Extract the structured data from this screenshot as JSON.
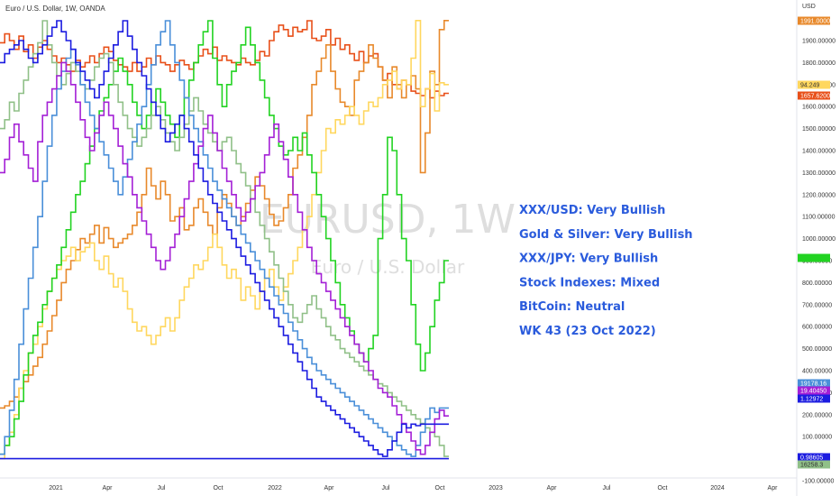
{
  "header": {
    "title": "Euro / U.S. Dollar, 1W, OANDA"
  },
  "watermark": {
    "symbol": "EURUSD, 1W",
    "name": "Euro / U.S. Dollar"
  },
  "chart_data": {
    "type": "line",
    "x_ticks": [
      "2021",
      "Apr",
      "Jul",
      "Oct",
      "2022",
      "Apr",
      "Jul",
      "Oct",
      "2023",
      "Apr",
      "Jul",
      "Oct",
      "2024",
      "Apr"
    ],
    "y_axis": {
      "unit_label": "USD",
      "ticks": [
        "1900.00000",
        "1800.00000",
        "1700.00000",
        "1600.00000",
        "1500.00000",
        "1400.00000",
        "1300.00000",
        "1200.00000",
        "1100.00000",
        "1000.00000",
        "900.00000",
        "800.00000",
        "700.00000",
        "600.00000",
        "500.00000",
        "400.00000",
        "300.00000",
        "200.00000",
        "100.00000",
        "0.00000",
        "-100.00000"
      ],
      "range": [
        -100,
        2000
      ]
    },
    "price_tags": [
      {
        "label": "1991.00000",
        "value": 1991,
        "color": "#e8892b",
        "text_color": "#ffffff"
      },
      {
        "label": "94.249",
        "value": 1708,
        "color": "#ffd75e",
        "text_color": "#333333"
      },
      {
        "label": "1657.62000",
        "value": 1657,
        "color": "#e8501a",
        "text_color": "#ffffff"
      },
      {
        "label": "",
        "value": 900,
        "color": "#22d322",
        "text_color": "#ffffff"
      },
      {
        "label": "19178.16",
        "value": 230,
        "color": "#4a8fd9",
        "text_color": "#ffffff"
      },
      {
        "label": "19.40450",
        "value": 194,
        "color": "#a420d6",
        "text_color": "#ffffff"
      },
      {
        "label": "1.12972",
        "value": 157,
        "color": "#1c1ce0",
        "text_color": "#ffffff"
      },
      {
        "label": "0.98605",
        "value": 10,
        "color": "#1c1ce0",
        "text_color": "#ffffff"
      },
      {
        "label": "16258.3",
        "value": -20,
        "color": "#90c088",
        "text_color": "#333333"
      }
    ],
    "series": [
      {
        "color": "#e8501a",
        "values": [
          1890,
          1930,
          1900,
          1860,
          1920,
          1850,
          1880,
          1820,
          1870,
          1900,
          1860,
          1830,
          1800,
          1820,
          1790,
          1760,
          1810,
          1780,
          1800,
          1830,
          1800,
          1840,
          1870,
          1850,
          1810,
          1790,
          1780,
          1760,
          1800,
          1760,
          1780,
          1820,
          1790,
          1830,
          1800,
          1790,
          1760,
          1790,
          1810,
          1790,
          1770,
          1800,
          1830,
          1860,
          1840,
          1870,
          1810,
          1830,
          1810,
          1800,
          1790,
          1820,
          1800,
          1790,
          1810,
          1850,
          1830,
          1900,
          1940,
          1970,
          1950,
          1920,
          1960,
          1940,
          1950,
          1990,
          1910,
          1900,
          1920,
          1950,
          1880,
          1910,
          1860,
          1880,
          1840,
          1810,
          1850,
          1800,
          1830,
          1840,
          1780,
          1720,
          1750,
          1700,
          1680,
          1720,
          1700,
          1670,
          1660,
          1650,
          1680,
          1640,
          1670,
          1650,
          1660
        ]
      },
      {
        "color": "#e8892b",
        "values": [
          230,
          240,
          260,
          280,
          320,
          350,
          380,
          420,
          460,
          520,
          580,
          650,
          720,
          800,
          860,
          900,
          950,
          1000,
          980,
          1020,
          1060,
          980,
          1050,
          1000,
          960,
          980,
          1000,
          1020,
          1060,
          1120,
          1200,
          1320,
          1240,
          1180,
          1260,
          1200,
          1080,
          1100,
          1140,
          1040,
          1060,
          1140,
          1180,
          1120,
          1060,
          1020,
          1140,
          1200,
          1160,
          1100,
          1060,
          1100,
          1160,
          1220,
          1280,
          1240,
          1180,
          1110,
          1060,
          1080,
          1140,
          1200,
          1320,
          1380,
          1460,
          1560,
          1700,
          1760,
          1820,
          1880,
          1760,
          1680,
          1620,
          1600,
          1560,
          1720,
          1760,
          1800,
          1880,
          1820,
          1780,
          1720,
          1640,
          1780,
          1700,
          1640,
          1700,
          1740,
          1680,
          1300,
          1480,
          1760,
          1700,
          1950,
          1991
        ]
      },
      {
        "color": "#ffd75e",
        "values": [
          0,
          60,
          120,
          200,
          320,
          400,
          480,
          520,
          600,
          680,
          760,
          820,
          860,
          900,
          920,
          960,
          900,
          940,
          960,
          980,
          900,
          860,
          920,
          840,
          780,
          820,
          760,
          680,
          620,
          580,
          600,
          560,
          520,
          560,
          600,
          640,
          580,
          640,
          720,
          780,
          820,
          880,
          860,
          900,
          960,
          1020,
          960,
          880,
          820,
          860,
          820,
          720,
          780,
          740,
          680,
          760,
          820,
          860,
          780,
          720,
          780,
          840,
          900,
          960,
          1040,
          1100,
          1200,
          1300,
          1400,
          1500,
          1480,
          1540,
          1520,
          1560,
          1600,
          1560,
          1520,
          1580,
          1620,
          1600,
          1640,
          1700,
          1720,
          1760,
          1680,
          1720,
          1700,
          1820,
          1991,
          1600,
          1680,
          1750,
          1580,
          1708,
          1700
        ]
      },
      {
        "color": "#22d322",
        "values": [
          20,
          60,
          100,
          180,
          260,
          380,
          480,
          560,
          620,
          700,
          760,
          820,
          880,
          960,
          1040,
          1120,
          1200,
          1260,
          1340,
          1420,
          1500,
          1580,
          1640,
          1700,
          1760,
          1820,
          1760,
          1700,
          1620,
          1560,
          1500,
          1560,
          1620,
          1680,
          1620,
          1560,
          1520,
          1460,
          1560,
          1640,
          1720,
          1800,
          1880,
          1940,
          1990,
          1820,
          1700,
          1600,
          1700,
          1760,
          1800,
          1880,
          1960,
          1880,
          1800,
          1720,
          1640,
          1560,
          1500,
          1420,
          1380,
          1400,
          1460,
          1400,
          1480,
          1380,
          1300,
          1200,
          1100,
          1000,
          900,
          800,
          700,
          640,
          580,
          520,
          480,
          440,
          500,
          560,
          1000,
          1200,
          1460,
          1400,
          1200,
          1000,
          900,
          700,
          520,
          400,
          480,
          600,
          720,
          800,
          900
        ]
      },
      {
        "color": "#90c088",
        "values": [
          1500,
          1540,
          1620,
          1580,
          1660,
          1720,
          1780,
          1840,
          1890,
          1990,
          1880,
          1800,
          1740,
          1700,
          1750,
          1800,
          1760,
          1700,
          1680,
          1720,
          1780,
          1820,
          1840,
          1800,
          1700,
          1620,
          1560,
          1500,
          1460,
          1420,
          1460,
          1500,
          1560,
          1600,
          1540,
          1480,
          1440,
          1400,
          1460,
          1520,
          1580,
          1640,
          1580,
          1520,
          1480,
          1440,
          1400,
          1440,
          1460,
          1400,
          1340,
          1300,
          1240,
          1180,
          1120,
          1060,
          1000,
          940,
          880,
          820,
          760,
          700,
          640,
          620,
          660,
          700,
          740,
          680,
          640,
          600,
          560,
          540,
          500,
          480,
          460,
          440,
          420,
          400,
          380,
          360,
          340,
          330,
          300,
          280,
          260,
          240,
          220,
          200,
          180,
          160,
          140,
          120,
          100,
          60,
          10
        ]
      },
      {
        "color": "#4a8fd9",
        "values": [
          20,
          100,
          220,
          360,
          520,
          680,
          820,
          960,
          1100,
          1260,
          1420,
          1560,
          1680,
          1760,
          1820,
          1860,
          1790,
          1700,
          1620,
          1560,
          1500,
          1440,
          1380,
          1320,
          1260,
          1200,
          1280,
          1360,
          1440,
          1520,
          1600,
          1700,
          1790,
          1880,
          1940,
          1990,
          1880,
          1800,
          1720,
          1640,
          1560,
          1500,
          1440,
          1380,
          1320,
          1260,
          1220,
          1180,
          1140,
          1100,
          1060,
          1020,
          980,
          940,
          900,
          860,
          820,
          780,
          740,
          700,
          660,
          620,
          580,
          540,
          500,
          460,
          430,
          400,
          380,
          360,
          340,
          320,
          300,
          280,
          260,
          240,
          220,
          200,
          180,
          160,
          140,
          120,
          100,
          80,
          60,
          40,
          20,
          10,
          60,
          120,
          180,
          230,
          210,
          230,
          230
        ]
      },
      {
        "color": "#a420d6",
        "values": [
          1300,
          1360,
          1460,
          1520,
          1440,
          1380,
          1320,
          1260,
          1440,
          1560,
          1620,
          1680,
          1740,
          1800,
          1760,
          1700,
          1620,
          1540,
          1460,
          1400,
          1480,
          1560,
          1620,
          1560,
          1500,
          1420,
          1340,
          1280,
          1200,
          1140,
          1080,
          1020,
          960,
          900,
          860,
          900,
          960,
          1020,
          1100,
          1180,
          1260,
          1340,
          1420,
          1500,
          1560,
          1480,
          1400,
          1320,
          1260,
          1200,
          1140,
          1080,
          1120,
          1180,
          1240,
          1300,
          1380,
          1460,
          1520,
          1440,
          1360,
          1280,
          1200,
          1120,
          1040,
          960,
          900,
          840,
          800,
          760,
          720,
          680,
          640,
          600,
          560,
          520,
          480,
          440,
          400,
          360,
          320,
          300,
          280,
          240,
          200,
          160,
          120,
          80,
          40,
          20,
          60,
          120,
          180,
          220,
          194
        ]
      },
      {
        "color": "#1c1ce0",
        "values": [
          1800,
          1840,
          1860,
          1880,
          1900,
          1860,
          1820,
          1800,
          1840,
          1880,
          1920,
          1960,
          1990,
          1940,
          1900,
          1860,
          1800,
          1760,
          1720,
          1680,
          1640,
          1700,
          1760,
          1820,
          1880,
          1940,
          1990,
          1920,
          1860,
          1800,
          1740,
          1680,
          1620,
          1560,
          1500,
          1440,
          1480,
          1520,
          1560,
          1500,
          1440,
          1380,
          1320,
          1260,
          1200,
          1160,
          1120,
          1080,
          1040,
          1000,
          960,
          920,
          880,
          840,
          800,
          760,
          720,
          680,
          640,
          600,
          560,
          520,
          480,
          440,
          400,
          360,
          320,
          280,
          260,
          240,
          220,
          200,
          180,
          160,
          140,
          120,
          100,
          80,
          60,
          40,
          20,
          10,
          40,
          80,
          120,
          157,
          140,
          157,
          150,
          157,
          157,
          157,
          157,
          157,
          157
        ]
      }
    ],
    "flat_line": {
      "color": "#1c1ce0",
      "value": 0
    },
    "annotations": [
      "XXX/USD: Very Bullish",
      "Gold & Silver: Very Bullish",
      "XXX/JPY: Very Bullish",
      "Stock Indexes:  Mixed",
      "BitCoin: Neutral",
      "WK 43 (23 Oct 2022)"
    ]
  }
}
